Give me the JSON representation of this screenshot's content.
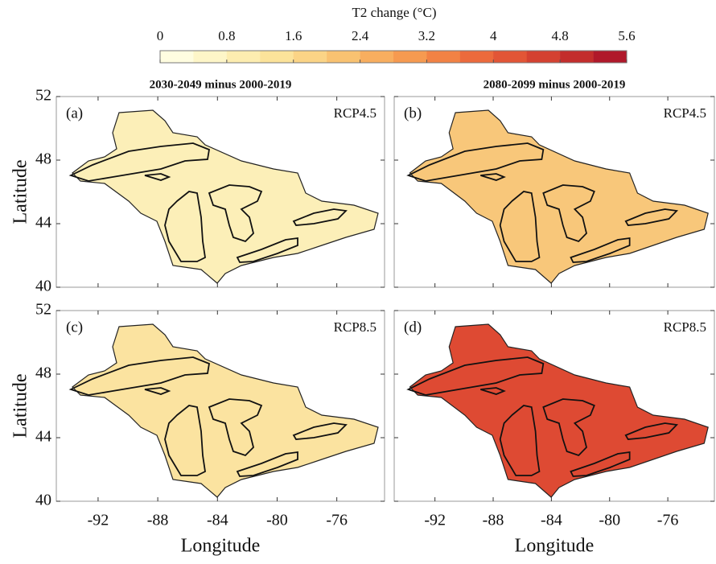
{
  "colorbar": {
    "title": "T2 change (°C)",
    "lim": [
      0,
      5.6
    ],
    "ticks": [
      0,
      0.8,
      1.6,
      2.4,
      3.2,
      4,
      4.8,
      5.6
    ],
    "colors": [
      "#fffde0",
      "#fef6c8",
      "#fdedb0",
      "#fce39a",
      "#fbd486",
      "#f9c271",
      "#f8ae5f",
      "#f69a50",
      "#f28244",
      "#ec6a3c",
      "#e25536",
      "#d44131",
      "#c32d2c",
      "#b0182a"
    ]
  },
  "column_titles": [
    "2030-2049 minus 2000-2019",
    "2080-2099 minus 2000-2019"
  ],
  "panels": [
    {
      "label": "(a)",
      "scenario": "RCP4.5",
      "fill": "#fcefb8"
    },
    {
      "label": "(b)",
      "scenario": "RCP4.5",
      "fill": "#f8c77a"
    },
    {
      "label": "(c)",
      "scenario": "RCP8.5",
      "fill": "#fbe3a0"
    },
    {
      "label": "(d)",
      "scenario": "RCP8.5",
      "fill": "#de4a33"
    }
  ],
  "x_axis": {
    "label": "Longitude",
    "lim": [
      -94.8,
      -72.8
    ],
    "ticks": [
      -92,
      -88,
      -84,
      -80,
      -76
    ]
  },
  "y_axis": {
    "label": "Latitude",
    "lim": [
      40,
      52
    ],
    "ticks": [
      40,
      44,
      48,
      52
    ]
  }
}
